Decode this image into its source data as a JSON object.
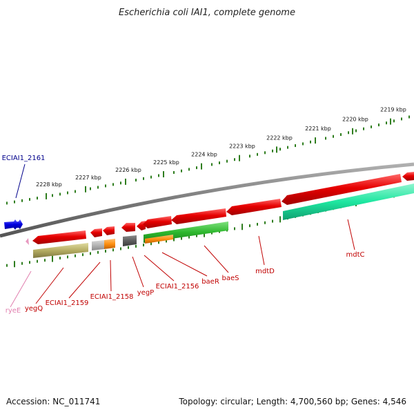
{
  "title": "Escherichia coli IAI1, complete genome",
  "accession_text": "Accession: NC_011741",
  "topology_text": "Topology: circular; Length: 4,700,560 bp; Genes: 4,546",
  "colors": {
    "backbone": "#808080",
    "tick": "#2e7d1e",
    "gene_red": "#e60000",
    "gene_green": "#2eb82e",
    "gene_teal": "#1ee6a0",
    "gene_olive": "#b5ad63",
    "gene_blue": "#0000e0",
    "gene_pink": "#e899c0",
    "label_red": "#c00000",
    "label_blue": "#00008b",
    "label_pink": "#e17eae"
  },
  "tick_labels": [
    "2219 kbp",
    "2220 kbp",
    "2221 kbp",
    "2222 kbp",
    "2223 kbp",
    "2224 kbp",
    "2225 kbp",
    "2226 kbp",
    "2227 kbp",
    "2228 kbp"
  ],
  "gene_labels": [
    "ECIAI1_2161",
    "ryeE",
    "yegQ",
    "ECIAI1_2159",
    "ECIAI1_2158",
    "yegP",
    "ECIAI1_2156",
    "baeR",
    "baeS",
    "mdtD",
    "mdtC"
  ]
}
